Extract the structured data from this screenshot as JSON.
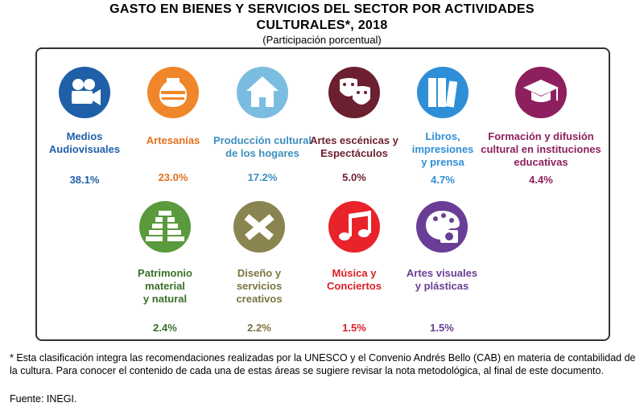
{
  "title_line1": "GASTO EN BIENES Y SERVICIOS DEL SECTOR POR ACTIVIDADES",
  "title_line2": "CULTURALES*, 2018",
  "subtitle": "(Participación porcentual)",
  "footnote": "* Esta clasificación integra las recomendaciones realizadas por la UNESCO y el Convenio Andrés Bello (CAB) en materia de contabilidad de la cultura. Para conocer el contenido de cada una de estas áreas se sugiere revisar la nota metodológica, al final de este documento.",
  "source": "Fuente: INEGI.",
  "chart_data": {
    "type": "table",
    "categories": [
      "Medios Audiovisuales",
      "Artesanías",
      "Producción cultural de los hogares",
      "Artes escénicas y Espectáculos",
      "Libros, impresiones y prensa",
      "Formación y difusión cultural en instituciones educativas",
      "Patrimonio material y natural",
      "Diseño y servicios creativos",
      "Música y Conciertos",
      "Artes visuales y plásticas"
    ],
    "values": [
      38.1,
      23.0,
      17.2,
      5.0,
      4.7,
      4.4,
      2.4,
      2.2,
      1.5,
      1.5
    ],
    "items": [
      {
        "label_lines": [
          "Medios",
          "Audiovisuales"
        ],
        "value": "38.1%",
        "color": "#1f5fa8",
        "label_color": "#1f5fa8",
        "icon": "film-camera-icon"
      },
      {
        "label_lines": [
          "Artesanías"
        ],
        "value": "23.0%",
        "color": "#f0862a",
        "label_color": "#e2711d",
        "icon": "vase-icon"
      },
      {
        "label_lines": [
          "Producción cultural",
          "de los hogares"
        ],
        "value": "17.2%",
        "color": "#7bbde0",
        "label_color": "#3d8fbf",
        "icon": "house-icon"
      },
      {
        "label_lines": [
          "Artes escénicas y",
          "Espectáculos"
        ],
        "value": "5.0%",
        "color": "#6b1f2f",
        "label_color": "#6b1f2f",
        "icon": "theater-masks-icon"
      },
      {
        "label_lines": [
          "Libros,",
          "impresiones",
          "y prensa"
        ],
        "value": "4.7%",
        "color": "#2f8fd6",
        "label_color": "#2f8fd6",
        "icon": "books-icon"
      },
      {
        "label_lines": [
          "Formación y difusión",
          "cultural en instituciones",
          "educativas"
        ],
        "value": "4.4%",
        "color": "#8e1f5e",
        "label_color": "#8e1f5e",
        "icon": "graduation-cap-icon"
      },
      {
        "label_lines": [
          "Patrimonio",
          "material",
          "y natural"
        ],
        "value": "2.4%",
        "color": "#5a9a3c",
        "label_color": "#3d6e28",
        "icon": "pyramid-icon"
      },
      {
        "label_lines": [
          "Diseño y",
          "servicios",
          "creativos"
        ],
        "value": "2.2%",
        "color": "#8a8450",
        "label_color": "#7a7440",
        "icon": "pencil-ruler-icon"
      },
      {
        "label_lines": [
          "Música y",
          "Conciertos"
        ],
        "value": "1.5%",
        "color": "#e8232a",
        "label_color": "#d81f26",
        "icon": "music-note-icon"
      },
      {
        "label_lines": [
          "Artes visuales",
          "y plásticas"
        ],
        "value": "1.5%",
        "color": "#6a3e96",
        "label_color": "#6a3e96",
        "icon": "palette-camera-icon"
      }
    ]
  }
}
